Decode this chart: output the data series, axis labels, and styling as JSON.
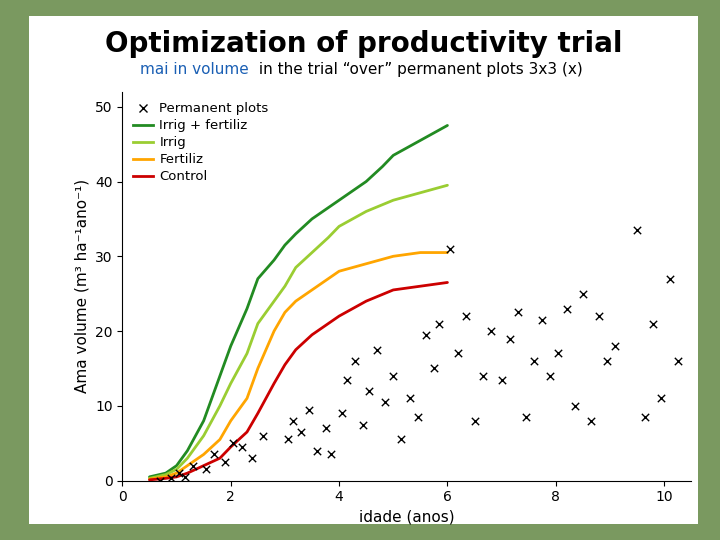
{
  "title": "Optimization of productivity trial",
  "subtitle_blue": "mai in volume",
  "subtitle_rest": " in the trial “over” permanent plots 3x3 (x)",
  "xlabel": "idade (anos)",
  "ylabel": "Ama volume (m³ ha⁻¹ano⁻¹)",
  "xlim": [
    0,
    10.5
  ],
  "ylim": [
    0,
    52
  ],
  "xticks": [
    0,
    2,
    4,
    6,
    8,
    10
  ],
  "yticks": [
    0,
    10,
    20,
    30,
    40,
    50
  ],
  "outer_bg": "#7a9960",
  "curves": {
    "irrig_fertiliz": {
      "color": "#228B22",
      "x": [
        0.5,
        0.8,
        1.0,
        1.2,
        1.5,
        1.8,
        2.0,
        2.3,
        2.5,
        2.8,
        3.0,
        3.2,
        3.5,
        3.8,
        4.0,
        4.2,
        4.5,
        4.8,
        5.0,
        5.5,
        6.0
      ],
      "y": [
        0.5,
        1.0,
        2.0,
        4.0,
        8.0,
        14.0,
        18.0,
        23.0,
        27.0,
        29.5,
        31.5,
        33.0,
        35.0,
        36.5,
        37.5,
        38.5,
        40.0,
        42.0,
        43.5,
        45.5,
        47.5
      ]
    },
    "irrig": {
      "color": "#9acd32",
      "x": [
        0.5,
        0.8,
        1.0,
        1.2,
        1.5,
        1.8,
        2.0,
        2.3,
        2.5,
        2.8,
        3.0,
        3.2,
        3.5,
        3.8,
        4.0,
        4.5,
        5.0,
        5.5,
        6.0
      ],
      "y": [
        0.3,
        0.8,
        1.5,
        3.0,
        6.0,
        10.0,
        13.0,
        17.0,
        21.0,
        24.0,
        26.0,
        28.5,
        30.5,
        32.5,
        34.0,
        36.0,
        37.5,
        38.5,
        39.5
      ]
    },
    "fertiliz": {
      "color": "#FFA500",
      "x": [
        0.5,
        0.8,
        1.0,
        1.2,
        1.5,
        1.8,
        2.0,
        2.3,
        2.5,
        2.8,
        3.0,
        3.2,
        3.5,
        3.8,
        4.0,
        4.5,
        5.0,
        5.5,
        6.0
      ],
      "y": [
        0.2,
        0.5,
        1.0,
        2.0,
        3.5,
        5.5,
        8.0,
        11.0,
        15.0,
        20.0,
        22.5,
        24.0,
        25.5,
        27.0,
        28.0,
        29.0,
        30.0,
        30.5,
        30.5
      ]
    },
    "control": {
      "color": "#cc0000",
      "x": [
        0.5,
        0.8,
        1.0,
        1.2,
        1.5,
        1.8,
        2.0,
        2.3,
        2.5,
        2.8,
        3.0,
        3.2,
        3.5,
        3.8,
        4.0,
        4.5,
        5.0,
        5.5,
        6.0
      ],
      "y": [
        0.1,
        0.3,
        0.5,
        1.0,
        2.0,
        3.0,
        4.5,
        6.5,
        9.0,
        13.0,
        15.5,
        17.5,
        19.5,
        21.0,
        22.0,
        24.0,
        25.5,
        26.0,
        26.5
      ]
    }
  },
  "scatter_x": [
    0.7,
    0.9,
    1.05,
    1.15,
    1.3,
    1.55,
    1.7,
    1.9,
    2.05,
    2.2,
    2.4,
    2.6,
    3.05,
    3.15,
    3.3,
    3.45,
    3.6,
    3.75,
    3.85,
    4.05,
    4.15,
    4.3,
    4.45,
    4.55,
    4.7,
    4.85,
    5.0,
    5.15,
    5.3,
    5.45,
    5.6,
    5.75,
    5.85,
    6.05,
    6.2,
    6.35,
    6.5,
    6.65,
    6.8,
    7.0,
    7.15,
    7.3,
    7.45,
    7.6,
    7.75,
    7.9,
    8.05,
    8.2,
    8.35,
    8.5,
    8.65,
    8.8,
    8.95,
    9.1,
    9.5,
    9.65,
    9.8,
    9.95,
    10.1,
    10.25
  ],
  "scatter_y": [
    0.0,
    0.3,
    1.0,
    0.5,
    2.0,
    1.5,
    3.5,
    2.5,
    5.0,
    4.5,
    3.0,
    6.0,
    5.5,
    8.0,
    6.5,
    9.5,
    4.0,
    7.0,
    3.5,
    9.0,
    13.5,
    16.0,
    7.5,
    12.0,
    17.5,
    10.5,
    14.0,
    5.5,
    11.0,
    8.5,
    19.5,
    15.0,
    21.0,
    31.0,
    17.0,
    22.0,
    8.0,
    14.0,
    20.0,
    13.5,
    19.0,
    22.5,
    8.5,
    16.0,
    21.5,
    14.0,
    17.0,
    23.0,
    10.0,
    25.0,
    8.0,
    22.0,
    16.0,
    18.0,
    33.5,
    8.5,
    21.0,
    11.0,
    27.0,
    16.0
  ],
  "title_fontsize": 20,
  "subtitle_fontsize": 11,
  "axis_label_fontsize": 11,
  "tick_fontsize": 10
}
